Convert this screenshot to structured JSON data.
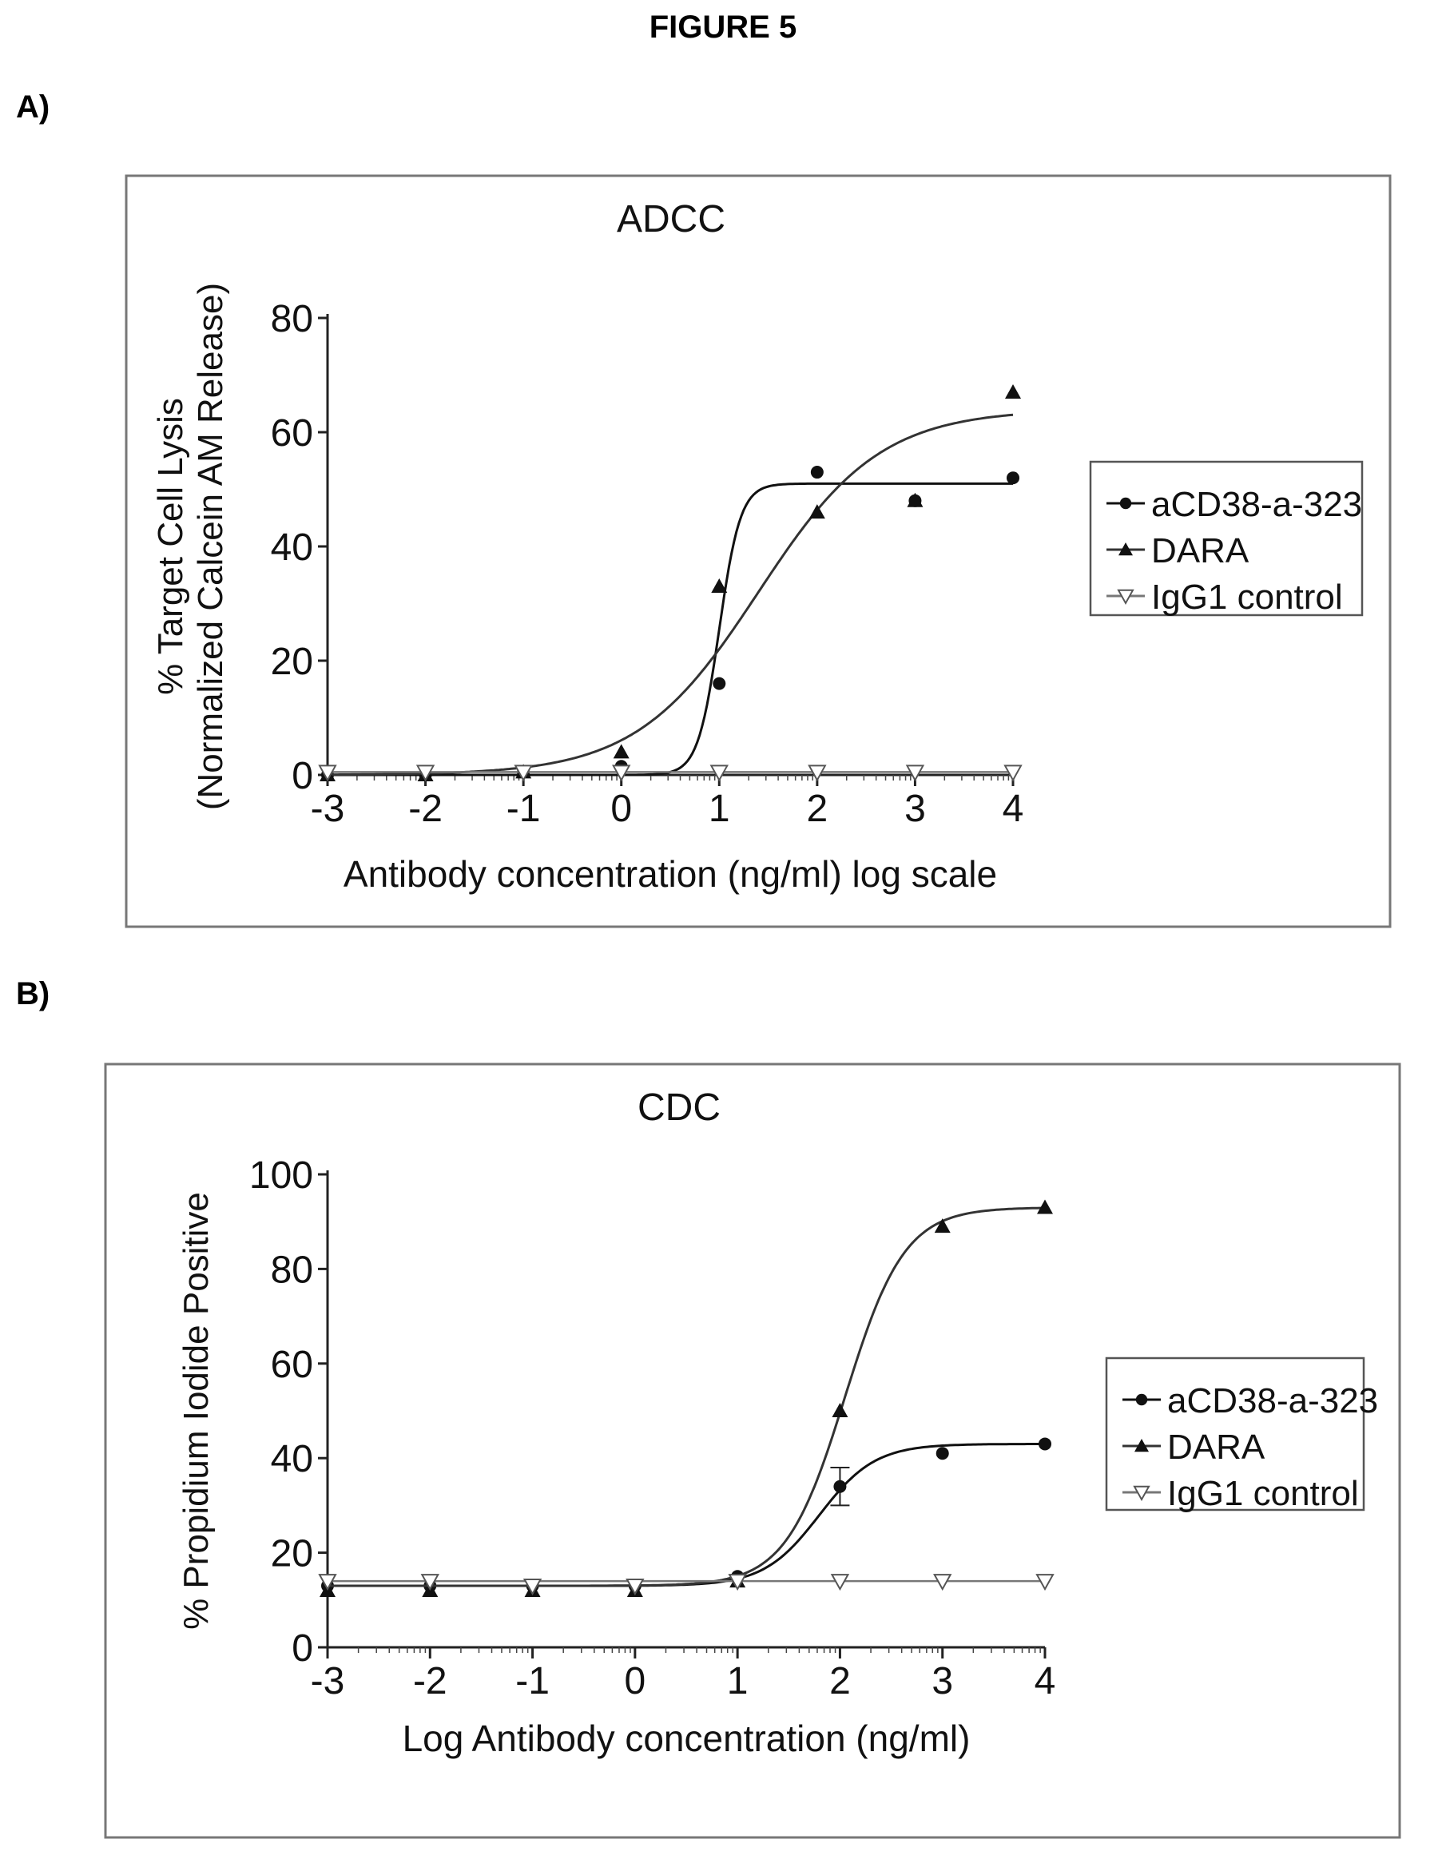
{
  "figure_title": "FIGURE 5",
  "panels": {
    "a": {
      "label": "A)"
    },
    "b": {
      "label": "B)"
    }
  },
  "chart_data": [
    {
      "type": "line",
      "title": "ADCC",
      "xlabel": "Antibody concentration (ng/ml) log scale",
      "ylabel_lines": [
        "% Target Cell Lysis",
        "(Normalized Calcein AM Release)"
      ],
      "x_ticks": [
        "-3",
        "-2",
        "-1",
        "0",
        "1",
        "2",
        "3",
        "4"
      ],
      "y_ticks": [
        "0",
        "20",
        "40",
        "60",
        "80"
      ],
      "xlim": [
        -3,
        4
      ],
      "ylim": [
        0,
        80
      ],
      "x_scale": "log (ticks show log10 of ng/ml)",
      "grid": false,
      "legend_position": "right",
      "series": [
        {
          "name": "aCD38-a-323",
          "marker": "circle",
          "x": [
            -3,
            -2,
            -1,
            0,
            1,
            2,
            3,
            4
          ],
          "values": [
            0,
            0,
            0.5,
            1.5,
            16,
            53,
            48,
            52
          ],
          "fit": {
            "bottom": 0,
            "top": 51,
            "logEC50": 1.0,
            "hill": 4.0
          }
        },
        {
          "name": "DARA",
          "marker": "triangle",
          "x": [
            -3,
            -2,
            -1,
            0,
            1,
            2,
            3,
            4
          ],
          "values": [
            0,
            0,
            0.5,
            4,
            33,
            46,
            48,
            67
          ],
          "fit": {
            "bottom": 0,
            "top": 64,
            "logEC50": 1.4,
            "hill": 0.7
          }
        },
        {
          "name": "IgG1 control",
          "marker": "triangle-down-open",
          "x": [
            -3,
            -2,
            -1,
            0,
            1,
            2,
            3,
            4
          ],
          "values": [
            0.5,
            0.5,
            0.5,
            0.5,
            0.5,
            0.5,
            0.5,
            0.5
          ],
          "fit": {
            "bottom": 0.5,
            "top": 0.5,
            "logEC50": 0,
            "hill": 1
          }
        }
      ]
    },
    {
      "type": "line",
      "title": "CDC",
      "xlabel": "Log Antibody concentration (ng/ml)",
      "ylabel_lines": [
        "% Propidium Iodide Positive"
      ],
      "x_ticks": [
        "-3",
        "-2",
        "-1",
        "0",
        "1",
        "2",
        "3",
        "4"
      ],
      "y_ticks": [
        "0",
        "20",
        "40",
        "60",
        "80",
        "100"
      ],
      "xlim": [
        -3,
        4
      ],
      "ylim": [
        0,
        100
      ],
      "x_scale": "log (ticks show log10 of ng/ml)",
      "grid": false,
      "legend_position": "right",
      "series": [
        {
          "name": "aCD38-a-323",
          "marker": "circle",
          "x": [
            -3,
            -2,
            -1,
            0,
            1,
            2,
            3,
            4
          ],
          "values": [
            13,
            13,
            13,
            13,
            15,
            34,
            41,
            43
          ],
          "error": [
            0,
            0,
            0,
            0,
            0,
            4,
            0,
            0
          ],
          "fit": {
            "bottom": 13,
            "top": 43,
            "logEC50": 1.8,
            "hill": 1.6
          }
        },
        {
          "name": "DARA",
          "marker": "triangle",
          "x": [
            -3,
            -2,
            -1,
            0,
            1,
            2,
            3,
            4
          ],
          "values": [
            12,
            12,
            12,
            12,
            14,
            50,
            89,
            93
          ],
          "error": [
            0,
            0,
            0,
            0,
            0,
            0,
            0,
            0
          ],
          "fit": {
            "bottom": 13,
            "top": 93,
            "logEC50": 2.05,
            "hill": 1.5
          }
        },
        {
          "name": "IgG1 control",
          "marker": "triangle-down-open",
          "x": [
            -3,
            -2,
            -1,
            0,
            1,
            2,
            3,
            4
          ],
          "values": [
            14,
            14,
            13,
            13,
            14,
            14,
            14,
            14
          ],
          "error": [
            0,
            0,
            0,
            0,
            0,
            0,
            0,
            0
          ],
          "fit": {
            "bottom": 14,
            "top": 14,
            "logEC50": 0,
            "hill": 1
          }
        }
      ]
    }
  ]
}
